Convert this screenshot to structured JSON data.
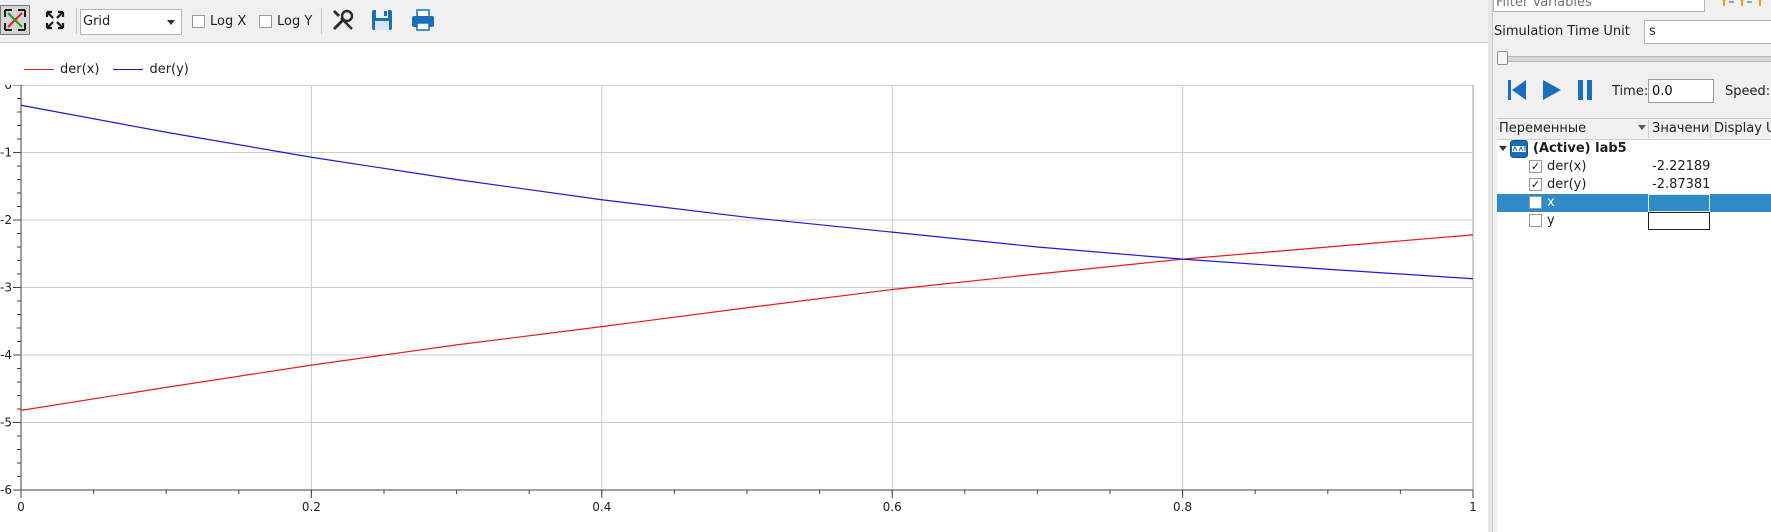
{
  "toolbar": {
    "fit_icon": "fit-in-view-icon",
    "fit_all_icon": "fit-all-icon",
    "grid_mode": "Grid",
    "log_x_label": "Log X",
    "log_y_label": "Log Y",
    "settings_icon": "wrench-screwdriver-icon",
    "save_icon": "floppy-disk-icon",
    "print_icon": "printer-icon"
  },
  "chart_data": {
    "type": "line",
    "x": [
      0,
      0.1,
      0.2,
      0.3,
      0.4,
      0.5,
      0.6,
      0.7,
      0.8,
      0.9,
      1
    ],
    "x_ticks": [
      "0",
      "0.2",
      "0.4",
      "0.6",
      "0.8",
      "1"
    ],
    "y_ticks": [
      "0",
      "-1",
      "-2",
      "-3",
      "-4",
      "-5",
      "-6"
    ],
    "xlim": [
      0,
      1
    ],
    "ylim": [
      -6,
      0
    ],
    "grid": true,
    "legend_position": "top-left",
    "series": [
      {
        "name": "der(x)",
        "color": "#e8191c",
        "values": [
          -4.82,
          -4.48,
          -4.15,
          -3.85,
          -3.58,
          -3.3,
          -3.03,
          -2.8,
          -2.58,
          -2.4,
          -2.22
        ]
      },
      {
        "name": "der(y)",
        "color": "#1a1ad8",
        "values": [
          -0.3,
          -0.7,
          -1.07,
          -1.4,
          -1.7,
          -1.96,
          -2.18,
          -2.4,
          -2.58,
          -2.73,
          -2.87
        ]
      }
    ]
  },
  "panel": {
    "filter_placeholder": "Filter Variables",
    "time_unit_label": "Simulation Time Unit",
    "time_unit_value": "s",
    "time_label": "Time:",
    "time_value": "0.0",
    "speed_label": "Speed:",
    "columns": [
      "Переменные",
      "Значение",
      "Display Unit"
    ],
    "model_label": "(Active) lab5",
    "rows": [
      {
        "name": "der(x)",
        "value": "-2.22189",
        "checked": true
      },
      {
        "name": "der(y)",
        "value": "-2.87381",
        "checked": true
      },
      {
        "name": "x",
        "value": "",
        "checked": false
      },
      {
        "name": "y",
        "value": "",
        "checked": false
      }
    ]
  }
}
